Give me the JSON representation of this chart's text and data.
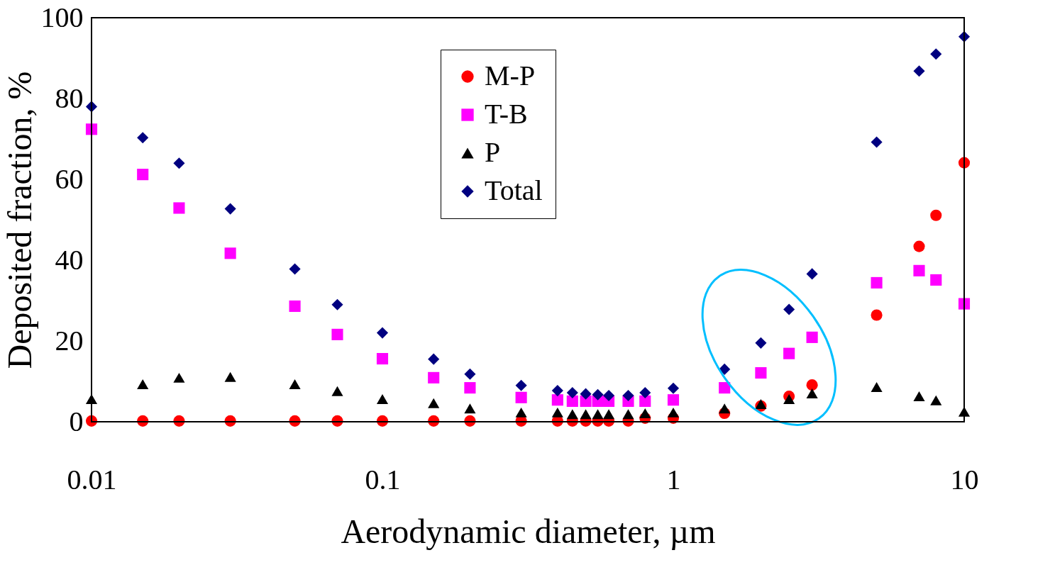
{
  "chart_data": {
    "type": "scatter",
    "xlabel": "Aerodynamic diameter, µm",
    "ylabel": "Deposited fraction, %",
    "x": [
      0.01,
      0.015,
      0.02,
      0.03,
      0.05,
      0.07,
      0.1,
      0.15,
      0.2,
      0.3,
      0.4,
      0.45,
      0.5,
      0.55,
      0.6,
      0.7,
      0.8,
      1,
      1.5,
      2,
      2.5,
      3,
      5,
      7,
      8,
      10
    ],
    "series": [
      {
        "name": "M-P",
        "color": "#ff0000",
        "marker": "circle",
        "values": [
          0.2,
          0.2,
          0.2,
          0.2,
          0.2,
          0.2,
          0.2,
          0.2,
          0.2,
          0.2,
          0.2,
          0.2,
          0.2,
          0.2,
          0.2,
          0.2,
          0.9,
          0.9,
          2.1,
          3.9,
          6.3,
          9.1,
          26.4,
          43.4,
          51.1,
          64.1
        ]
      },
      {
        "name": "T-B",
        "color": "#ff00ff",
        "marker": "square",
        "values": [
          72.4,
          61.2,
          52.9,
          41.7,
          28.6,
          21.6,
          15.6,
          10.9,
          8.4,
          6,
          5.4,
          5.1,
          5.1,
          5.1,
          5.1,
          5.1,
          5.1,
          5.4,
          8.4,
          12.1,
          16.9,
          20.9,
          34.4,
          37.4,
          35.1,
          29.2
        ]
      },
      {
        "name": "P",
        "color": "#000000",
        "marker": "triangle",
        "values": [
          5.6,
          9.3,
          10.9,
          11.1,
          9.3,
          7.6,
          5.6,
          4.6,
          3.3,
          2.3,
          2.3,
          1.9,
          1.9,
          1.9,
          1.9,
          1.9,
          2.1,
          2.3,
          3.3,
          4.4,
          5.6,
          7,
          8.6,
          6.3,
          5.3,
          2.5
        ]
      },
      {
        "name": "Total",
        "color": "#000080",
        "marker": "diamond",
        "values": [
          78,
          70.3,
          64,
          52.7,
          37.8,
          29,
          22,
          15.5,
          11.8,
          9,
          7.7,
          7.2,
          6.9,
          6.7,
          6.5,
          6.5,
          7.2,
          8.3,
          13,
          19.5,
          27.8,
          36.6,
          69.2,
          86.8,
          91,
          95.3
        ]
      }
    ],
    "log": "x",
    "xlim": [
      0.01,
      10
    ],
    "xticks": [
      0.01,
      0.1,
      1,
      10
    ],
    "ylim": [
      0,
      100
    ],
    "yticks": [
      0,
      20,
      40,
      60,
      80,
      100
    ],
    "grid": false,
    "legend": "top"
  }
}
